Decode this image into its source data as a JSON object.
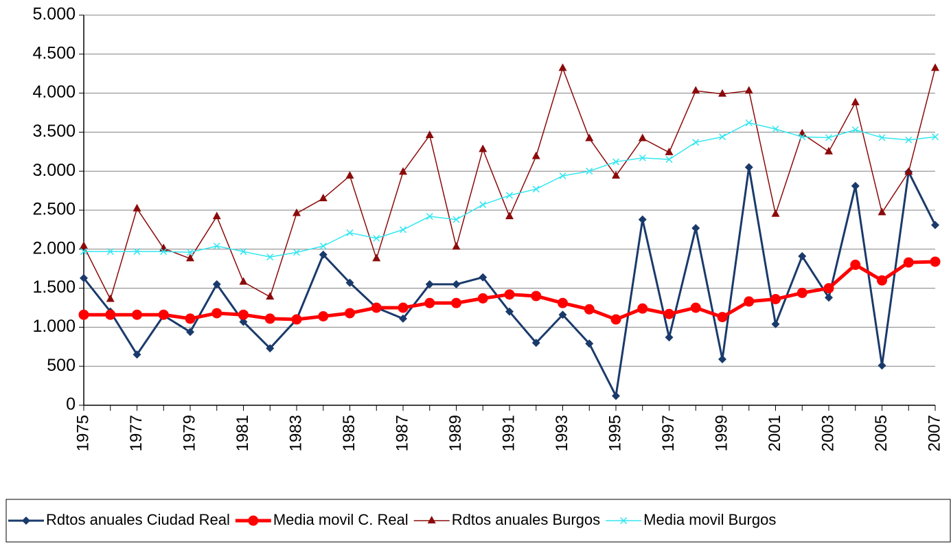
{
  "chart_data": {
    "type": "line",
    "x": [
      1975,
      1976,
      1977,
      1978,
      1979,
      1980,
      1981,
      1982,
      1983,
      1984,
      1985,
      1986,
      1987,
      1988,
      1989,
      1990,
      1991,
      1992,
      1993,
      1994,
      1995,
      1996,
      1997,
      1998,
      1999,
      2000,
      2001,
      2002,
      2003,
      2004,
      2005,
      2006,
      2007
    ],
    "xlim": [
      1975,
      2007
    ],
    "xticks": [
      1975,
      1977,
      1979,
      1981,
      1983,
      1985,
      1987,
      1989,
      1991,
      1993,
      1995,
      1997,
      1999,
      2001,
      2003,
      2005,
      2007
    ],
    "ylim": [
      0,
      5000
    ],
    "yticks": [
      0,
      500,
      {
        "value": 1000,
        "label": "1.000"
      },
      {
        "value": 1500,
        "label": "1.500"
      },
      {
        "value": 2000,
        "label": "2.000"
      },
      {
        "value": 2500,
        "label": "2.500"
      },
      {
        "value": 3000,
        "label": "3.000"
      },
      {
        "value": 3500,
        "label": "3.500"
      },
      {
        "value": 4000,
        "label": "4.000"
      },
      {
        "value": 4500,
        "label": "4.500"
      },
      {
        "value": 5000,
        "label": "5.000"
      }
    ],
    "grid": true,
    "legend": "bottom",
    "series": [
      {
        "name": "Rdtos anuales Ciudad Real",
        "color": "#1a3a6b",
        "marker": "diamond",
        "line_width": 3,
        "values": [
          1630,
          1200,
          650,
          1150,
          940,
          1550,
          1070,
          730,
          1100,
          1930,
          1570,
          1250,
          1110,
          1550,
          1550,
          1640,
          1200,
          800,
          1160,
          790,
          120,
          2380,
          870,
          2270,
          590,
          3050,
          1040,
          1910,
          1380,
          2810,
          510,
          2990,
          2310
        ]
      },
      {
        "name": "Media movil C. Real",
        "color": "#ff0000",
        "marker": "circle",
        "line_width": 5,
        "values": [
          1160,
          1160,
          1160,
          1160,
          1110,
          1180,
          1160,
          1110,
          1100,
          1140,
          1180,
          1250,
          1250,
          1310,
          1310,
          1370,
          1420,
          1400,
          1310,
          1230,
          1100,
          1240,
          1170,
          1250,
          1130,
          1330,
          1360,
          1440,
          1500,
          1800,
          1600,
          1830,
          1840
        ]
      },
      {
        "name": "Rdtos anuales Burgos",
        "color": "#8b0a0a",
        "marker": "triangle",
        "line_width": 1.5,
        "values": [
          2040,
          1360,
          2520,
          2010,
          1880,
          2420,
          1580,
          1390,
          2460,
          2650,
          2940,
          1880,
          2990,
          3460,
          2030,
          3280,
          2420,
          3190,
          4320,
          3420,
          2940,
          3420,
          3240,
          4030,
          3990,
          4030,
          2450,
          3480,
          3250,
          3880,
          2470,
          2990,
          4320
        ]
      },
      {
        "name": "Media movil Burgos",
        "color": "#33e6f0",
        "marker": "x",
        "line_width": 1.5,
        "values": [
          1970,
          1970,
          1970,
          1970,
          1960,
          2040,
          1970,
          1900,
          1960,
          2040,
          2210,
          2140,
          2250,
          2420,
          2380,
          2570,
          2690,
          2770,
          2940,
          3000,
          3120,
          3170,
          3150,
          3370,
          3440,
          3620,
          3540,
          3440,
          3430,
          3530,
          3430,
          3400,
          3440
        ]
      }
    ]
  }
}
